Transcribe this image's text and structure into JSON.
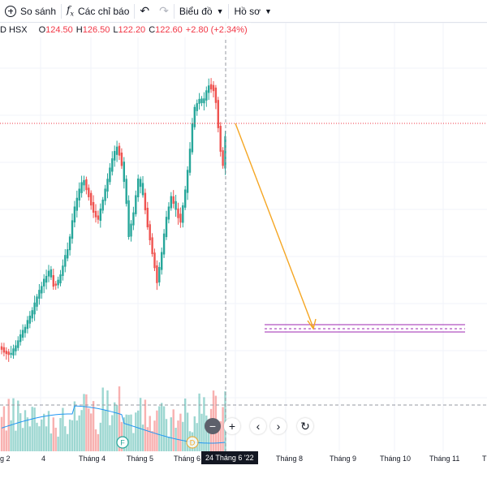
{
  "toolbar": {
    "compare_label": "So sánh",
    "indicators_label": "Các chỉ báo",
    "chart_label": "Biểu đồ",
    "profile_label": "Hồ sơ"
  },
  "legend": {
    "symbol": "D",
    "exchange": "HSX",
    "open_label": "O",
    "open": "124.50",
    "high_label": "H",
    "high": "126.50",
    "low_label": "L",
    "low": "122.20",
    "close_label": "C",
    "close": "122.60",
    "change": "+2.80 (+2.34%)"
  },
  "xaxis": {
    "labels": [
      "g 2",
      "4",
      "Tháng 4",
      "Tháng 5",
      "Tháng 6",
      "Tháng 8",
      "Tháng 9",
      "Tháng 10",
      "Tháng 11",
      "T"
    ],
    "current": "24 Tháng 6 '22"
  },
  "markers": [
    "F",
    "D"
  ],
  "colors": {
    "up": "#26a69a",
    "down": "#ef5350",
    "arrow": "#f5a623",
    "zone": "#9c27b0",
    "ma": "#2196f3"
  }
}
